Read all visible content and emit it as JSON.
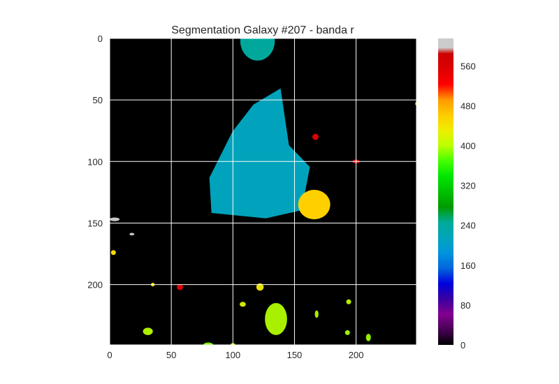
{
  "chart_data": {
    "type": "heatmap",
    "title": "Segmentation Galaxy #207 - banda r",
    "x_ticks": [
      0,
      50,
      100,
      150,
      200
    ],
    "y_ticks": [
      0,
      50,
      100,
      150,
      200
    ],
    "xlim": [
      0,
      249
    ],
    "ylim": [
      249,
      0
    ],
    "image_size": [
      249,
      249
    ],
    "background_color": "#000000",
    "grid": true,
    "grid_color": "#ffffff",
    "colorbar": {
      "ticks": [
        0,
        80,
        160,
        240,
        320,
        400,
        480,
        560
      ],
      "range": [
        0,
        615
      ],
      "colormap": "nipy_spectral"
    },
    "segments": [
      {
        "value": 205,
        "color": "#00a3bb",
        "center": [
          100,
          120
        ],
        "radius": [
          44,
          34
        ],
        "shape": "cone"
      },
      {
        "value": 235,
        "color": "#00a89c",
        "center": [
          2,
          120
        ],
        "radius": [
          16,
          14
        ],
        "shape": "blob"
      },
      {
        "value": 470,
        "color": "#ffd000",
        "center": [
          135,
          166
        ],
        "radius": [
          12,
          13
        ],
        "shape": "blob"
      },
      {
        "value": 390,
        "color": "#a8f000",
        "center": [
          228,
          135
        ],
        "radius": [
          13,
          9
        ],
        "shape": "blob"
      },
      {
        "value": 565,
        "color": "#dd0000",
        "center": [
          80,
          167
        ],
        "radius": [
          2.5,
          2.5
        ],
        "shape": "blob"
      },
      {
        "value": 560,
        "color": "#e81010",
        "center": [
          100,
          200
        ],
        "radius": [
          1.5,
          3
        ],
        "shape": "blob"
      },
      {
        "value": 565,
        "color": "#dd0000",
        "center": [
          202,
          57
        ],
        "radius": [
          2.5,
          2.5
        ],
        "shape": "blob"
      },
      {
        "value": 460,
        "color": "#f5dd00",
        "center": [
          53,
          250
        ],
        "radius": [
          2,
          2
        ],
        "shape": "blob"
      },
      {
        "value": 600,
        "color": "#c8c8c8",
        "center": [
          147,
          4
        ],
        "radius": [
          1.5,
          4
        ],
        "shape": "blob"
      },
      {
        "value": 600,
        "color": "#c8c8c8",
        "center": [
          159,
          18
        ],
        "radius": [
          1,
          2
        ],
        "shape": "blob"
      },
      {
        "value": 450,
        "color": "#f5d800",
        "center": [
          174,
          3
        ],
        "radius": [
          2,
          2
        ],
        "shape": "blob"
      },
      {
        "value": 430,
        "color": "#ffe000",
        "center": [
          200,
          35
        ],
        "radius": [
          1.5,
          1.5
        ],
        "shape": "blob"
      },
      {
        "value": 440,
        "color": "#e6e000",
        "center": [
          202,
          122
        ],
        "radius": [
          3,
          3
        ],
        "shape": "blob"
      },
      {
        "value": 420,
        "color": "#d0e800",
        "center": [
          216,
          108
        ],
        "radius": [
          2,
          2.5
        ],
        "shape": "blob"
      },
      {
        "value": 410,
        "color": "#b0ee00",
        "center": [
          238,
          31
        ],
        "radius": [
          3,
          4
        ],
        "shape": "blob"
      },
      {
        "value": 400,
        "color": "#a8f000",
        "center": [
          224,
          168
        ],
        "radius": [
          3,
          1.5
        ],
        "shape": "blob"
      },
      {
        "value": 410,
        "color": "#b8ec00",
        "center": [
          214,
          194
        ],
        "radius": [
          2,
          2
        ],
        "shape": "blob"
      },
      {
        "value": 400,
        "color": "#a0f200",
        "center": [
          239,
          193
        ],
        "radius": [
          2,
          2
        ],
        "shape": "blob"
      },
      {
        "value": 390,
        "color": "#90f000",
        "center": [
          243,
          210
        ],
        "radius": [
          3,
          2
        ],
        "shape": "blob"
      },
      {
        "value": 380,
        "color": "#80f000",
        "center": [
          249,
          80
        ],
        "radius": [
          2,
          4
        ],
        "shape": "blob"
      },
      {
        "value": 420,
        "color": "#d8e800",
        "center": [
          249,
          100
        ],
        "radius": [
          1.5,
          2
        ],
        "shape": "blob"
      }
    ]
  }
}
